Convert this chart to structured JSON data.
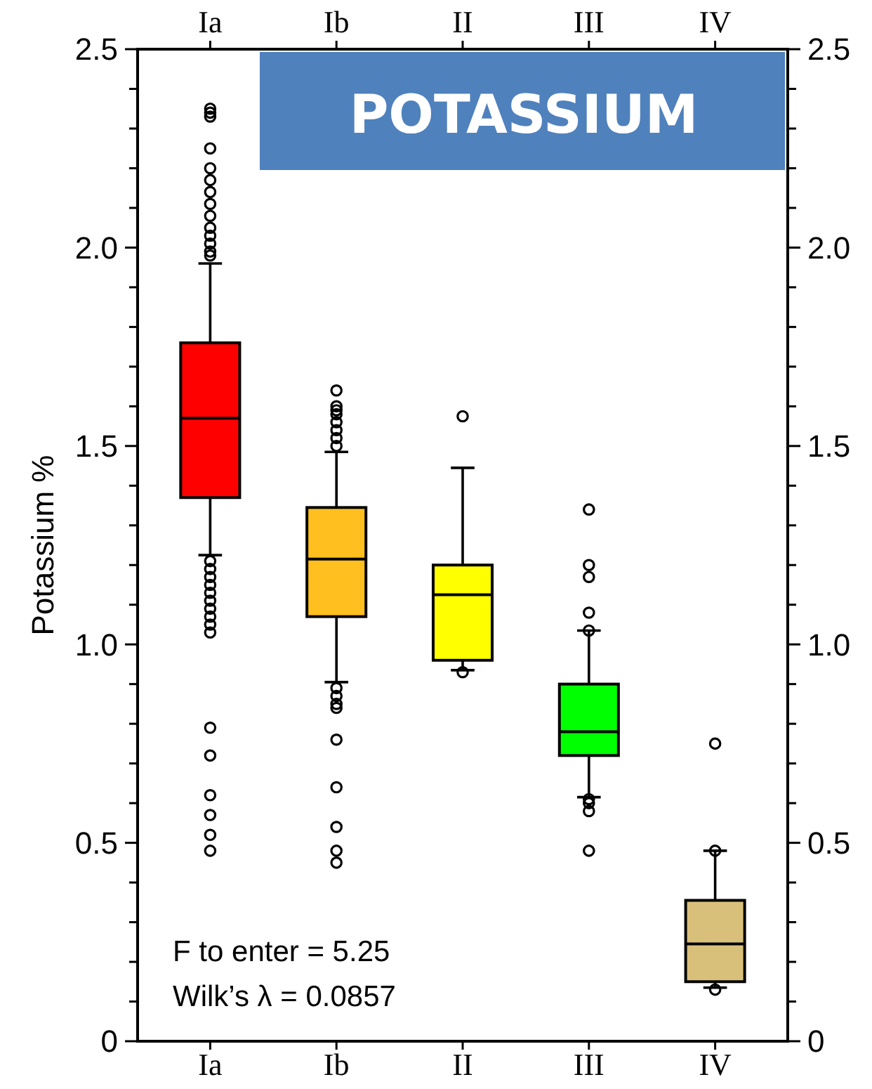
{
  "chart_data": {
    "type": "box",
    "title": "POTASSIUM",
    "ylabel": "Potassium %",
    "categories": [
      "Ia",
      "Ib",
      "II",
      "III",
      "IV"
    ],
    "colors": [
      "#ff0000",
      "#ffbf1f",
      "#ffff00",
      "#00ff00",
      "#d9c07a"
    ],
    "boxes": [
      {
        "low": 1.225,
        "q1": 1.37,
        "median": 1.57,
        "q3": 1.76,
        "high": 1.96,
        "outliers": [
          2.35,
          2.34,
          2.33,
          2.25,
          2.2,
          2.17,
          2.14,
          2.11,
          2.08,
          2.05,
          2.03,
          2.01,
          1.99,
          1.98,
          1.21,
          1.19,
          1.17,
          1.15,
          1.13,
          1.11,
          1.09,
          1.07,
          1.05,
          1.03,
          0.79,
          0.72,
          0.62,
          0.57,
          0.52,
          0.48
        ]
      },
      {
        "low": 0.905,
        "q1": 1.07,
        "median": 1.215,
        "q3": 1.345,
        "high": 1.485,
        "outliers": [
          1.64,
          1.6,
          1.59,
          1.58,
          1.56,
          1.54,
          1.52,
          1.5,
          0.89,
          0.87,
          0.85,
          0.84,
          0.76,
          0.64,
          0.54,
          0.48,
          0.45
        ]
      },
      {
        "low": 0.935,
        "q1": 0.96,
        "median": 1.125,
        "q3": 1.2,
        "high": 1.445,
        "outliers": [
          1.575,
          0.93
        ]
      },
      {
        "low": 0.615,
        "q1": 0.72,
        "median": 0.78,
        "q3": 0.9,
        "high": 1.035,
        "outliers": [
          1.34,
          1.2,
          1.17,
          1.08,
          1.035,
          0.61,
          0.6,
          0.58,
          0.48
        ]
      },
      {
        "low": 0.135,
        "q1": 0.15,
        "median": 0.245,
        "q3": 0.355,
        "high": 0.48,
        "outliers": [
          0.75,
          0.48,
          0.13
        ]
      }
    ],
    "ylim": [
      0,
      2.5
    ],
    "yticks": [
      0,
      {
        "value": 0.1,
        "label": null
      },
      {
        "value": 0.2,
        "label": null
      },
      {
        "value": 0.3,
        "label": null
      },
      {
        "value": 0.4,
        "label": null
      },
      0.5,
      {
        "value": 0.6,
        "label": null
      },
      {
        "value": 0.7,
        "label": null
      },
      {
        "value": 0.8,
        "label": null
      },
      {
        "value": 0.9,
        "label": null
      },
      {
        "value": 1,
        "label": "1.0"
      },
      {
        "value": 1.1,
        "label": null
      },
      {
        "value": 1.2,
        "label": null
      },
      {
        "value": 1.3,
        "label": null
      },
      {
        "value": 1.4,
        "label": null
      },
      1.5,
      {
        "value": 1.6,
        "label": null
      },
      {
        "value": 1.7,
        "label": null
      },
      {
        "value": 1.8,
        "label": null
      },
      {
        "value": 1.9,
        "label": null
      },
      {
        "value": 2,
        "label": "2.0"
      },
      {
        "value": 2.1,
        "label": null
      },
      {
        "value": 2.2,
        "label": null
      },
      {
        "value": 2.3,
        "label": null
      },
      {
        "value": 2.4,
        "label": null
      },
      2.5
    ],
    "y2lim": [
      0,
      2.5
    ],
    "y2ticks": [
      0,
      {
        "value": 0.1,
        "label": null
      },
      {
        "value": 0.2,
        "label": null
      },
      {
        "value": 0.3,
        "label": null
      },
      {
        "value": 0.4,
        "label": null
      },
      0.5,
      {
        "value": 0.6,
        "label": null
      },
      {
        "value": 0.7,
        "label": null
      },
      {
        "value": 0.8,
        "label": null
      },
      {
        "value": 0.9,
        "label": null
      },
      {
        "value": 1,
        "label": "1.0"
      },
      {
        "value": 1.1,
        "label": null
      },
      {
        "value": 1.2,
        "label": null
      },
      {
        "value": 1.3,
        "label": null
      },
      {
        "value": 1.4,
        "label": null
      },
      1.5,
      {
        "value": 1.6,
        "label": null
      },
      {
        "value": 1.7,
        "label": null
      },
      {
        "value": 1.8,
        "label": null
      },
      {
        "value": 1.9,
        "label": null
      },
      {
        "value": 2,
        "label": "2.0"
      },
      {
        "value": 2.1,
        "label": null
      },
      {
        "value": 2.2,
        "label": null
      },
      {
        "value": 2.3,
        "label": null
      },
      {
        "value": 2.4,
        "label": null
      },
      2.5
    ],
    "annotations": [
      "F to enter = 5.25",
      "Wilk’s λ = 0.0857"
    ],
    "grid": false
  }
}
